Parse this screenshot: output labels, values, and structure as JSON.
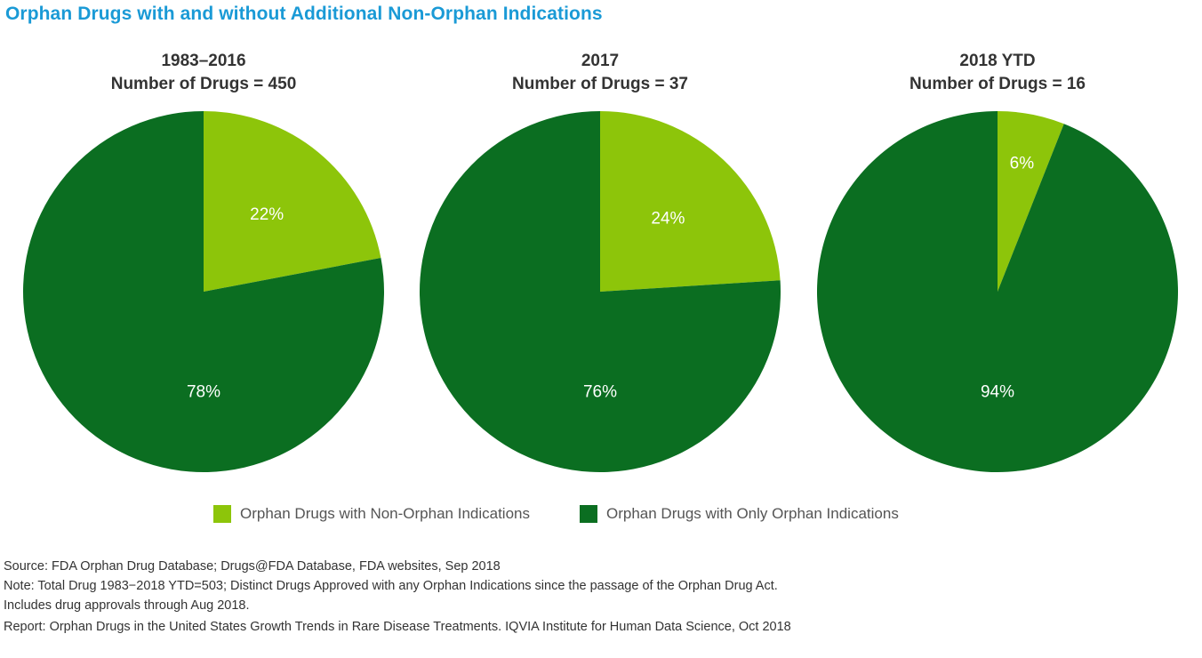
{
  "title": "Orphan Drugs with and without Additional Non-Orphan Indications",
  "colors": {
    "non_orphan": "#8dc50a",
    "only_orphan": "#0b6e21",
    "title": "#1a9ad6"
  },
  "chart_data": [
    {
      "type": "pie",
      "title": "1983–2016",
      "subtitle": "Number of Drugs = 450",
      "categories": [
        "Orphan Drugs with Non-Orphan Indications",
        "Orphan Drugs with Only Orphan Indications"
      ],
      "values": [
        22,
        78
      ],
      "labels": [
        "22%",
        "78%"
      ]
    },
    {
      "type": "pie",
      "title": "2017",
      "subtitle": "Number of Drugs = 37",
      "categories": [
        "Orphan Drugs with Non-Orphan Indications",
        "Orphan Drugs with Only Orphan Indications"
      ],
      "values": [
        24,
        76
      ],
      "labels": [
        "24%",
        "76%"
      ]
    },
    {
      "type": "pie",
      "title": "2018 YTD",
      "subtitle": "Number of Drugs = 16",
      "categories": [
        "Orphan Drugs with Non-Orphan Indications",
        "Orphan Drugs with Only Orphan Indications"
      ],
      "values": [
        6,
        94
      ],
      "labels": [
        "6%",
        "94%"
      ]
    }
  ],
  "legend": {
    "non_orphan": "Orphan Drugs with Non-Orphan Indications",
    "only_orphan": "Orphan Drugs with Only Orphan Indications"
  },
  "notes": {
    "source": "Source: FDA Orphan Drug Database; Drugs@FDA Database, FDA websites, Sep 2018",
    "note_line1": "Note: Total Drug 1983−2018 YTD=503; Distinct Drugs Approved with any Orphan Indications since the passage of the Orphan Drug Act.",
    "note_line2": "Includes drug approvals through Aug 2018.",
    "report": "Report: Orphan Drugs in the United States Growth Trends in Rare Disease Treatments. IQVIA Institute for Human Data Science, Oct 2018"
  }
}
